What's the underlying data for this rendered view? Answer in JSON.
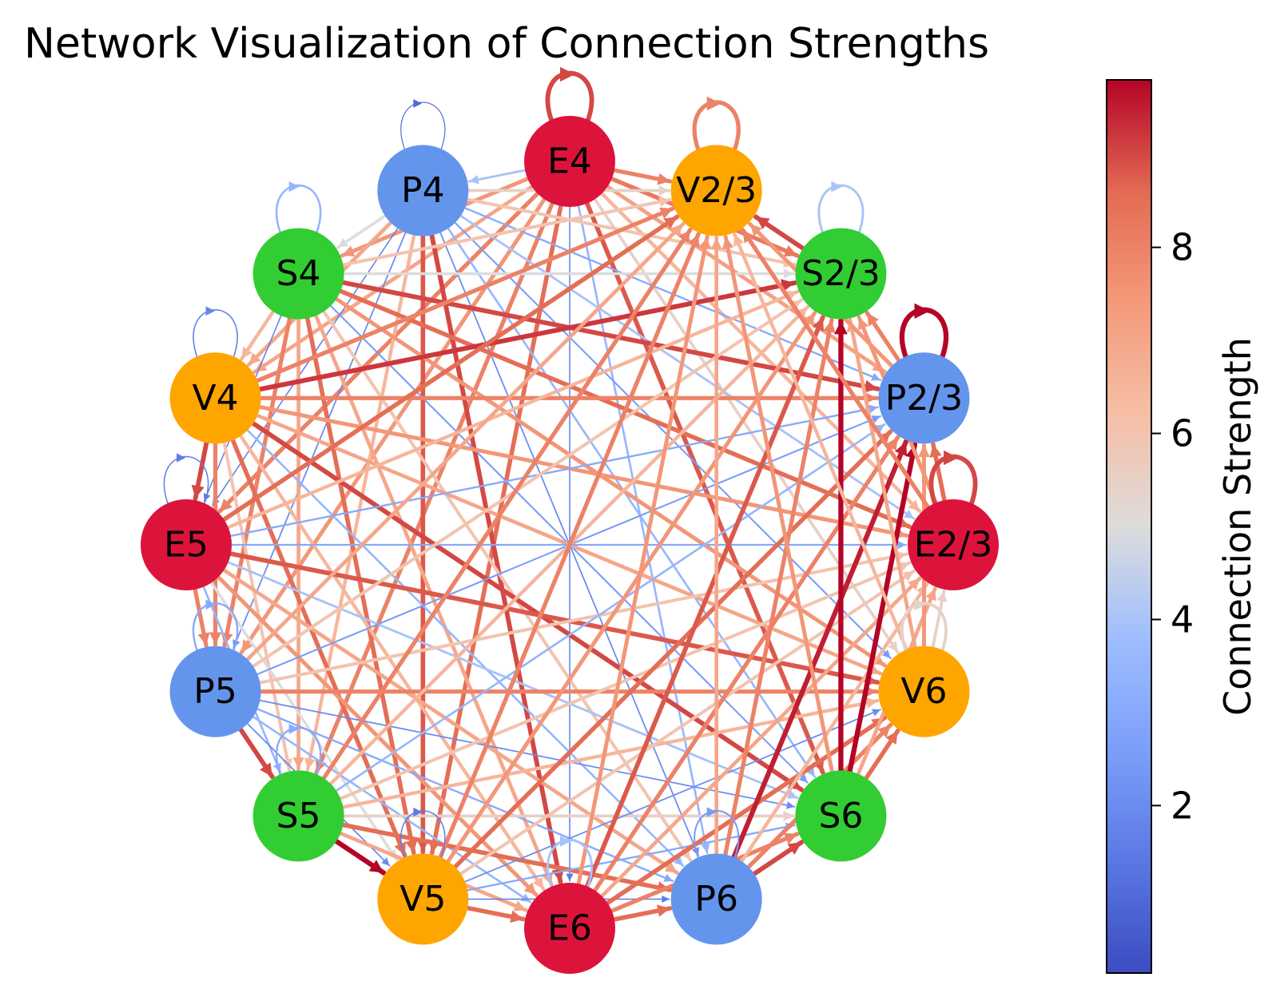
{
  "title": "Network Visualization of Connection Strengths",
  "colorbar": {
    "label": "Connection Strength",
    "ticks": [
      2,
      4,
      6,
      8
    ],
    "range": [
      0.2,
      9.8
    ],
    "colormap": "coolwarm"
  },
  "node_colors": {
    "E": "#dc143c",
    "P": "#6495ed",
    "V": "#ffa500",
    "S": "#32cd32"
  },
  "nodes": [
    {
      "id": "E2/3",
      "type": "E"
    },
    {
      "id": "P2/3",
      "type": "P"
    },
    {
      "id": "S2/3",
      "type": "S"
    },
    {
      "id": "V2/3",
      "type": "V"
    },
    {
      "id": "E4",
      "type": "E"
    },
    {
      "id": "P4",
      "type": "P"
    },
    {
      "id": "S4",
      "type": "S"
    },
    {
      "id": "V4",
      "type": "V"
    },
    {
      "id": "E5",
      "type": "E"
    },
    {
      "id": "P5",
      "type": "P"
    },
    {
      "id": "S5",
      "type": "S"
    },
    {
      "id": "V5",
      "type": "V"
    },
    {
      "id": "E6",
      "type": "E"
    },
    {
      "id": "P6",
      "type": "P"
    },
    {
      "id": "S6",
      "type": "S"
    },
    {
      "id": "V6",
      "type": "V"
    }
  ],
  "self_loops": [
    {
      "node": "E4",
      "weight": 9.0
    },
    {
      "node": "V2/3",
      "weight": 8.0
    },
    {
      "node": "P4",
      "weight": 1.0
    },
    {
      "node": "S4",
      "weight": 3.5
    },
    {
      "node": "S2/3",
      "weight": 4.0
    },
    {
      "node": "V4",
      "weight": 1.8
    },
    {
      "node": "P2/3",
      "weight": 9.8
    },
    {
      "node": "E5",
      "weight": 1.5
    },
    {
      "node": "E2/3",
      "weight": 9.0
    },
    {
      "node": "P5",
      "weight": 3.0
    },
    {
      "node": "V6",
      "weight": 5.5
    },
    {
      "node": "S5",
      "weight": 3.0
    },
    {
      "node": "V5",
      "weight": 1.5
    },
    {
      "node": "E6",
      "weight": 4.0
    },
    {
      "node": "P6",
      "weight": 2.5
    }
  ],
  "edges": [
    [
      "E4",
      "V2/3",
      8.0
    ],
    [
      "E4",
      "S2/3",
      8.2
    ],
    [
      "E4",
      "P2/3",
      7.2
    ],
    [
      "E4",
      "E2/3",
      6.5
    ],
    [
      "E4",
      "V6",
      5.5
    ],
    [
      "E4",
      "S6",
      8.8
    ],
    [
      "E4",
      "P6",
      3.5
    ],
    [
      "E4",
      "E6",
      1.5
    ],
    [
      "E4",
      "V5",
      8.5
    ],
    [
      "E4",
      "S5",
      8.0
    ],
    [
      "E4",
      "P5",
      7.5
    ],
    [
      "E4",
      "E5",
      8.0
    ],
    [
      "E4",
      "V4",
      7.0
    ],
    [
      "E4",
      "S4",
      7.5
    ],
    [
      "E4",
      "P4",
      4.0
    ],
    [
      "P4",
      "V2/3",
      5.5
    ],
    [
      "P4",
      "S2/3",
      6.0
    ],
    [
      "P4",
      "P2/3",
      3.0
    ],
    [
      "P4",
      "E2/3",
      4.0
    ],
    [
      "P4",
      "V6",
      2.5
    ],
    [
      "P4",
      "S6",
      3.5
    ],
    [
      "P4",
      "P6",
      2.0
    ],
    [
      "P4",
      "E6",
      9.0
    ],
    [
      "P4",
      "V5",
      8.8
    ],
    [
      "P4",
      "S5",
      6.5
    ],
    [
      "P4",
      "P5",
      2.0
    ],
    [
      "P4",
      "E5",
      1.5
    ],
    [
      "P4",
      "V4",
      7.0
    ],
    [
      "P4",
      "S4",
      5.0
    ],
    [
      "S4",
      "V2/3",
      6.0
    ],
    [
      "S4",
      "S2/3",
      5.0
    ],
    [
      "S4",
      "P2/3",
      9.0
    ],
    [
      "S4",
      "E2/3",
      8.5
    ],
    [
      "S4",
      "V6",
      7.5
    ],
    [
      "S4",
      "S6",
      2.5
    ],
    [
      "S4",
      "P6",
      6.0
    ],
    [
      "S4",
      "E6",
      7.0
    ],
    [
      "S4",
      "V5",
      8.5
    ],
    [
      "S4",
      "S5",
      7.0
    ],
    [
      "S4",
      "P5",
      8.0
    ],
    [
      "S4",
      "E5",
      1.5
    ],
    [
      "S4",
      "V4",
      6.5
    ],
    [
      "V4",
      "V2/3",
      8.0
    ],
    [
      "V4",
      "S2/3",
      9.2
    ],
    [
      "V4",
      "P2/3",
      8.0
    ],
    [
      "V4",
      "E2/3",
      7.5
    ],
    [
      "V4",
      "V6",
      7.0
    ],
    [
      "V4",
      "S6",
      9.0
    ],
    [
      "V4",
      "P6",
      3.5
    ],
    [
      "V4",
      "E6",
      6.5
    ],
    [
      "V4",
      "V5",
      8.5
    ],
    [
      "V4",
      "S5",
      6.0
    ],
    [
      "V4",
      "P5",
      8.0
    ],
    [
      "V4",
      "E5",
      9.0
    ],
    [
      "E5",
      "V2/3",
      8.5
    ],
    [
      "E5",
      "S2/3",
      6.5
    ],
    [
      "E5",
      "P2/3",
      3.0
    ],
    [
      "E5",
      "E2/3",
      3.0
    ],
    [
      "E5",
      "V6",
      8.8
    ],
    [
      "E5",
      "S6",
      4.0
    ],
    [
      "E5",
      "P6",
      7.0
    ],
    [
      "E5",
      "E6",
      7.5
    ],
    [
      "E5",
      "V5",
      5.0
    ],
    [
      "E5",
      "S5",
      3.5
    ],
    [
      "E5",
      "P5",
      8.0
    ],
    [
      "P5",
      "V2/3",
      7.0
    ],
    [
      "P5",
      "S2/3",
      6.0
    ],
    [
      "P5",
      "P2/3",
      2.5
    ],
    [
      "P5",
      "E2/3",
      6.0
    ],
    [
      "P5",
      "V6",
      8.0
    ],
    [
      "P5",
      "S6",
      2.0
    ],
    [
      "P5",
      "P6",
      3.0
    ],
    [
      "P5",
      "E6",
      3.5
    ],
    [
      "P5",
      "V5",
      2.0
    ],
    [
      "P5",
      "S5",
      9.0
    ],
    [
      "S5",
      "V2/3",
      8.0
    ],
    [
      "S5",
      "S2/3",
      6.5
    ],
    [
      "S5",
      "P2/3",
      3.5
    ],
    [
      "S5",
      "E2/3",
      6.0
    ],
    [
      "S5",
      "V6",
      6.5
    ],
    [
      "S5",
      "S6",
      5.5
    ],
    [
      "S5",
      "P6",
      8.5
    ],
    [
      "S5",
      "E6",
      7.0
    ],
    [
      "S5",
      "V5",
      9.8
    ],
    [
      "V5",
      "V2/3",
      8.0
    ],
    [
      "V5",
      "S2/3",
      7.5
    ],
    [
      "V5",
      "P2/3",
      8.5
    ],
    [
      "V5",
      "E2/3",
      6.0
    ],
    [
      "V5",
      "V6",
      2.0
    ],
    [
      "V5",
      "S6",
      3.0
    ],
    [
      "V5",
      "P6",
      1.5
    ],
    [
      "V5",
      "E6",
      8.5
    ],
    [
      "E6",
      "V2/3",
      7.5
    ],
    [
      "E6",
      "S2/3",
      8.8
    ],
    [
      "E6",
      "P2/3",
      8.0
    ],
    [
      "E6",
      "E2/3",
      7.0
    ],
    [
      "E6",
      "V6",
      8.5
    ],
    [
      "E6",
      "S6",
      8.0
    ],
    [
      "E6",
      "P6",
      8.5
    ],
    [
      "P6",
      "V2/3",
      7.0
    ],
    [
      "P6",
      "S2/3",
      8.0
    ],
    [
      "P6",
      "P2/3",
      9.5
    ],
    [
      "P6",
      "E2/3",
      6.5
    ],
    [
      "P6",
      "V6",
      8.0
    ],
    [
      "P6",
      "S6",
      9.0
    ],
    [
      "S6",
      "V2/3",
      7.5
    ],
    [
      "S6",
      "S2/3",
      9.8
    ],
    [
      "S6",
      "P2/3",
      9.8
    ],
    [
      "S6",
      "E2/3",
      7.0
    ],
    [
      "S6",
      "V6",
      8.5
    ],
    [
      "V6",
      "V2/3",
      6.5
    ],
    [
      "V6",
      "S2/3",
      7.0
    ],
    [
      "V6",
      "P2/3",
      7.5
    ],
    [
      "V6",
      "E2/3",
      5.5
    ],
    [
      "E2/3",
      "V2/3",
      8.0
    ],
    [
      "E2/3",
      "S2/3",
      7.5
    ],
    [
      "E2/3",
      "P2/3",
      8.5
    ],
    [
      "P2/3",
      "V2/3",
      7.5
    ],
    [
      "P2/3",
      "S2/3",
      8.0
    ],
    [
      "S2/3",
      "V2/3",
      9.0
    ]
  ]
}
